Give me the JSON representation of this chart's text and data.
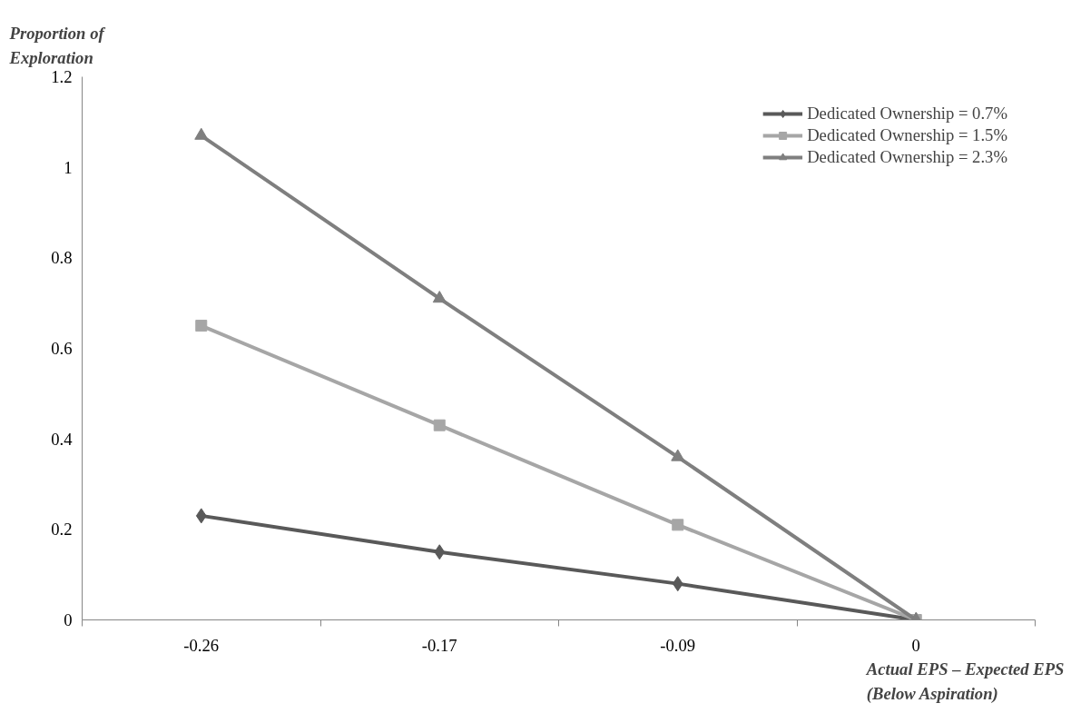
{
  "chart_data": {
    "type": "line",
    "xlabel": "Actual EPS – Expected EPS (Below Aspiration)",
    "ylabel": "Proportion of Exploration",
    "categories": [
      "-0.26",
      "-0.17",
      "-0.09",
      "0"
    ],
    "series": [
      {
        "name": "Dedicated Ownership = 0.7%",
        "color": "#595959",
        "marker": "diamond",
        "values": [
          0.23,
          0.15,
          0.08,
          0
        ]
      },
      {
        "name": "Dedicated Ownership = 1.5%",
        "color": "#a6a6a6",
        "marker": "square",
        "values": [
          0.65,
          0.43,
          0.21,
          0
        ]
      },
      {
        "name": "Dedicated Ownership = 2.3%",
        "color": "#7f7f7f",
        "marker": "triangle",
        "values": [
          1.07,
          0.71,
          0.36,
          0
        ]
      }
    ],
    "ylim": [
      0,
      1.2
    ],
    "yticks": [
      0,
      0.2,
      0.4,
      0.6,
      0.8,
      1,
      1.2
    ],
    "grid": false,
    "legend": "top right",
    "line_style": "solid"
  }
}
